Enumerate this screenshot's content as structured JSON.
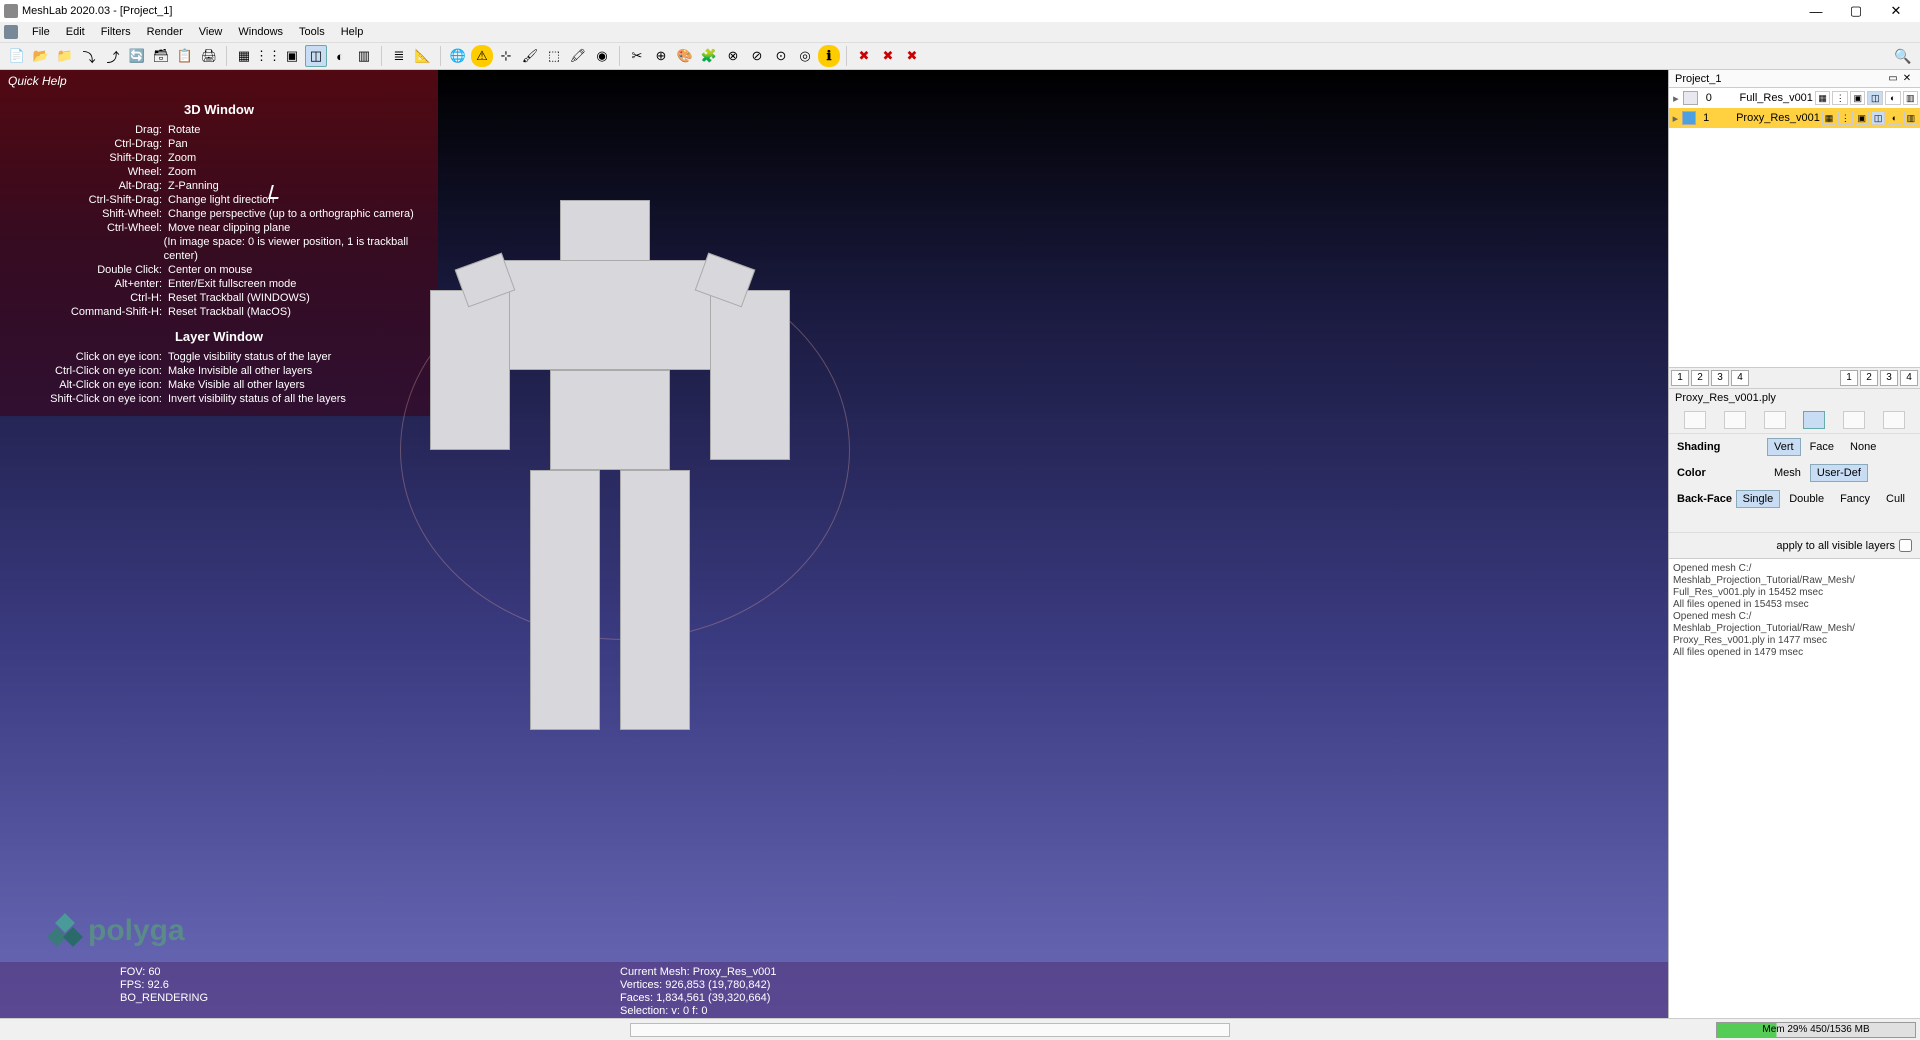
{
  "title": "MeshLab 2020.03 - [Project_1]",
  "menus": [
    "File",
    "Edit",
    "Filters",
    "Render",
    "View",
    "Windows",
    "Tools",
    "Help"
  ],
  "toolbar_groups": [
    [
      "new-project",
      "open-project",
      "open-folder",
      "import",
      "export",
      "reload",
      "save-layer",
      "save-snapshot",
      "print"
    ],
    [
      "box",
      "points",
      "wireframe",
      "flat-lines",
      "smooth",
      "texture"
    ],
    [
      "layers",
      "measure"
    ],
    [
      "globe",
      "warn-yellow",
      "axis",
      "brush",
      "select-face",
      "paint",
      "fill"
    ],
    [
      "tool-a",
      "tool-b",
      "color-cube",
      "puzzle",
      "tool-c",
      "tool-d",
      "tool-e",
      "tool-f",
      "info"
    ],
    [
      "del-red1",
      "del-red2",
      "del-red3"
    ]
  ],
  "toolbar_glyphs": {
    "new-project": "📄",
    "open-project": "📂",
    "open-folder": "📁",
    "import": "⤵",
    "export": "⤴",
    "reload": "🔄",
    "save-layer": "🗃",
    "save-snapshot": "📋",
    "print": "🖨",
    "box": "▦",
    "points": "⋮⋮",
    "wireframe": "▣",
    "flat-lines": "◫",
    "smooth": "◐",
    "texture": "▥",
    "layers": "≣",
    "measure": "📐",
    "globe": "🌐",
    "warn-yellow": "⚠",
    "axis": "⊹",
    "brush": "🖌",
    "select-face": "⬚",
    "paint": "🖍",
    "fill": "◉",
    "tool-a": "✂",
    "tool-b": "⊕",
    "color-cube": "🎨",
    "puzzle": "🧩",
    "tool-c": "⊗",
    "tool-d": "⊘",
    "tool-e": "⊙",
    "tool-f": "◎",
    "info": "ℹ",
    "del-red1": "✖",
    "del-red2": "✖",
    "del-red3": "✖"
  },
  "toolbar_active": "flat-lines",
  "quickhelp": {
    "title": "Quick Help",
    "sections": [
      {
        "heading": "3D Window",
        "rows": [
          [
            "Drag:",
            "Rotate"
          ],
          [
            "Ctrl-Drag:",
            "Pan"
          ],
          [
            "Shift-Drag:",
            "Zoom"
          ],
          [
            "Wheel:",
            "Zoom"
          ],
          [
            "Alt-Drag:",
            "Z-Panning"
          ],
          [
            "Ctrl-Shift-Drag:",
            "Change light direction"
          ],
          [
            "Shift-Wheel:",
            "Change perspective (up to a orthographic camera)"
          ],
          [
            "Ctrl-Wheel:",
            "Move near clipping plane"
          ],
          [
            "",
            "(In image space: 0 is viewer position, 1 is trackball center)"
          ],
          [
            "Double Click:",
            "Center on mouse"
          ],
          [
            "Alt+enter:",
            "Enter/Exit fullscreen mode"
          ],
          [
            "Ctrl-H:",
            "Reset Trackball (WINDOWS)"
          ],
          [
            "Command-Shift-H:",
            "Reset Trackball (MacOS)"
          ]
        ]
      },
      {
        "heading": "Layer Window",
        "rows": [
          [
            "Click on eye icon:",
            "Toggle visibility status of the layer"
          ],
          [
            "Ctrl-Click on eye icon:",
            "Make Invisible all other layers"
          ],
          [
            "Alt-Click on eye icon:",
            "Make Visible all other layers"
          ],
          [
            "Shift-Click on eye icon:",
            "Invert visibility status of all the layers"
          ]
        ]
      }
    ]
  },
  "stats": {
    "left": [
      "FOV: 60",
      "FPS:    92.6",
      "BO_RENDERING"
    ],
    "right": [
      "Current Mesh: Proxy_Res_v001",
      "Vertices: 926,853    (19,780,842)",
      "Faces: 1,834,561    (39,320,664)",
      "Selection: v: 0 f: 0"
    ]
  },
  "logo": "polyga",
  "project_panel": {
    "title": "Project_1",
    "layers": [
      {
        "idx": "0",
        "name": "Full_Res_v001",
        "selected": false,
        "visible": false
      },
      {
        "idx": "1",
        "name": "Proxy_Res_v001",
        "selected": true,
        "visible": true
      }
    ],
    "numbtns_left": [
      "1",
      "2",
      "3",
      "4"
    ],
    "numbtns_right": [
      "1",
      "2",
      "3",
      "4"
    ],
    "filename": "Proxy_Res_v001.ply",
    "shading": {
      "label": "Shading",
      "opts": [
        "Vert",
        "Face",
        "None"
      ],
      "sel": "Vert"
    },
    "color": {
      "label": "Color",
      "opts": [
        "Mesh",
        "User-Def"
      ],
      "sel": "User-Def"
    },
    "backface": {
      "label": "Back-Face",
      "opts": [
        "Single",
        "Double",
        "Fancy",
        "Cull"
      ],
      "sel": "Single"
    },
    "apply": "apply to all visible layers"
  },
  "log_lines": [
    "Opened mesh C:/",
    "Meshlab_Projection_Tutorial/Raw_Mesh/",
    "Full_Res_v001.ply in 15452 msec",
    "All files opened in 15453 msec",
    "Opened mesh C:/",
    "Meshlab_Projection_Tutorial/Raw_Mesh/",
    "Proxy_Res_v001.ply in 1477 msec",
    "All files opened in 1479 msec"
  ],
  "status": {
    "mem": "Mem 29% 450/1536 MB"
  }
}
